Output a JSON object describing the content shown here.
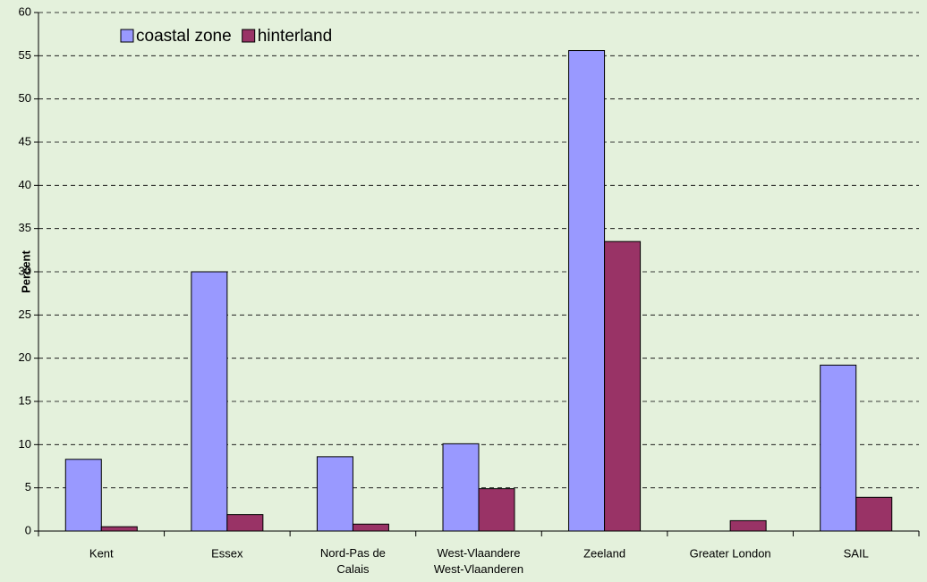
{
  "chart_data": {
    "type": "bar",
    "y_label": "Percent",
    "categories": [
      "Kent",
      "Essex",
      "Nord-Pas de Calais",
      "West-Vlaanderen",
      "Zeeland",
      "Greater London",
      "SAIL"
    ],
    "series": [
      {
        "name": "coastal zone",
        "color": "#9999ff",
        "values": [
          8.3,
          30.0,
          8.6,
          10.1,
          55.6,
          null,
          19.2
        ]
      },
      {
        "name": "hinterland",
        "color": "#993366",
        "values": [
          0.5,
          1.9,
          0.8,
          4.9,
          33.5,
          1.2,
          3.9
        ]
      }
    ],
    "ylim": [
      0,
      60
    ],
    "yticks": [
      0,
      5,
      10,
      15,
      20,
      25,
      30,
      35,
      40,
      45,
      50,
      55,
      60
    ],
    "grid": true
  }
}
